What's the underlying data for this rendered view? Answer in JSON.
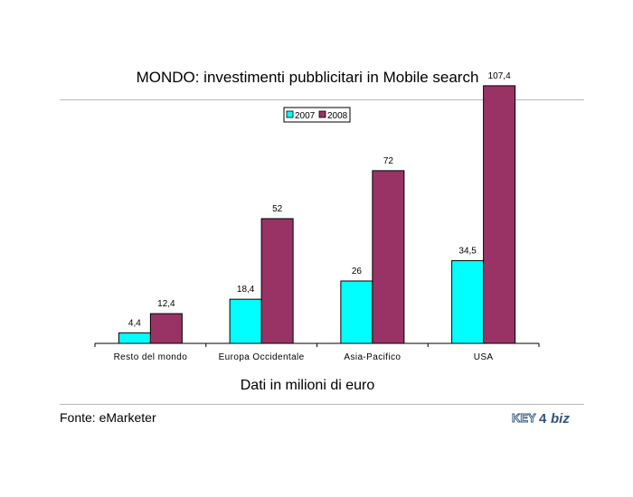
{
  "title": "MONDO: investimenti pubblicitari in Mobile search",
  "subtitle": "Dati in milioni di euro",
  "source": "Fonte: eMarketer",
  "logo": {
    "text_key": "KEY",
    "text_num": "4",
    "text_biz": "biz"
  },
  "chart_data": {
    "type": "bar",
    "categories": [
      "Resto del mondo",
      "Europa Occidentale",
      "Asia-Pacifico",
      "USA"
    ],
    "series": [
      {
        "name": "2007",
        "values": [
          4.4,
          18.4,
          26,
          34.5
        ],
        "labels": [
          "4,4",
          "18,4",
          "26",
          "34,5"
        ],
        "color": "#00ffff"
      },
      {
        "name": "2008",
        "values": [
          12.4,
          52,
          72,
          107.4
        ],
        "labels": [
          "12,4",
          "52",
          "72",
          "107,4"
        ],
        "color": "#993366"
      }
    ],
    "ylim": [
      0,
      110
    ],
    "legend": "top-center",
    "grid": false
  }
}
